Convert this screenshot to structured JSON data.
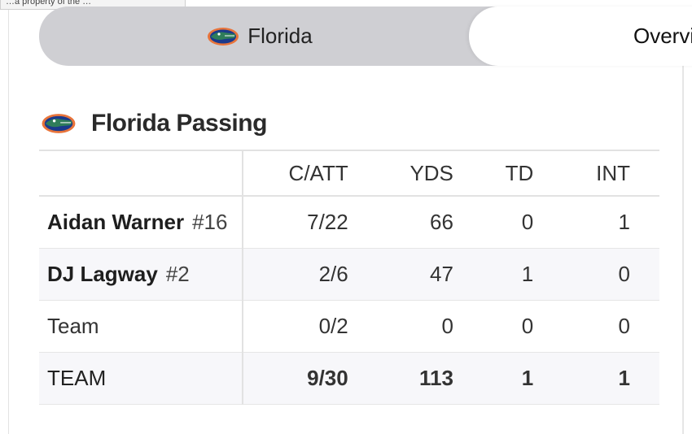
{
  "tooltip": {
    "text": "…a property of the …"
  },
  "tabs": [
    {
      "label": "Florida"
    },
    {
      "label": "Overview"
    }
  ],
  "section": {
    "title": "Florida Passing"
  },
  "table": {
    "columns": [
      "C/ATT",
      "YDS",
      "TD",
      "INT"
    ],
    "rows": [
      {
        "name": "Aidan Warner",
        "number": "#16",
        "catt": "7/22",
        "yds": "66",
        "td": "0",
        "int": "1"
      },
      {
        "name": "DJ Lagway",
        "number": "#2",
        "catt": "2/6",
        "yds": "47",
        "td": "1",
        "int": "0"
      },
      {
        "name": "Team",
        "number": "",
        "catt": "0/2",
        "yds": "0",
        "td": "0",
        "int": "0"
      }
    ],
    "total": {
      "name": "TEAM",
      "catt": "9/30",
      "yds": "113",
      "td": "1",
      "int": "1"
    }
  },
  "icons": {
    "team_logo": "gator-logo-icon"
  },
  "colors": {
    "tab_active_bg": "#cfcfd3",
    "row_alt_bg": "#f7f7fa",
    "logo_orange": "#e8743b",
    "logo_blue": "#1b3a8c",
    "logo_green": "#2f7d5a"
  }
}
